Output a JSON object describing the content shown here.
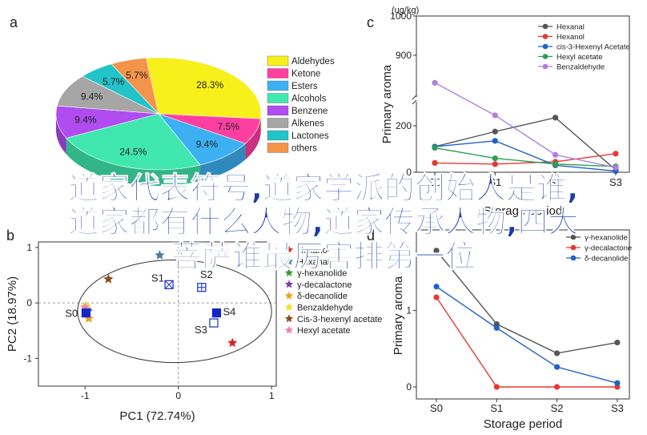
{
  "panel_labels": {
    "a": "a",
    "b": "b",
    "c": "c",
    "d": "d"
  },
  "overlay_title": [
    "道家代表符号,道家学派的创始人是谁,",
    "道家都有什么人物,道家传承人物,四大",
    "菩萨谁最厉害排第一位"
  ],
  "chart_data": [
    {
      "id": "a",
      "type": "pie",
      "categories": [
        "Aldehydes",
        "Ketone",
        "Esters",
        "Alcohols",
        "Benzene",
        "Alkenes",
        "Lactones",
        "others"
      ],
      "values": [
        28.3,
        7.5,
        9.4,
        24.5,
        9.4,
        9.4,
        5.7,
        5.7
      ],
      "labels": [
        "28.3%",
        "7.5%",
        "9.4%",
        "24.5%",
        "9.4%",
        "9.4%",
        "5.7%",
        "5.7%"
      ],
      "colors": [
        "#f7f01a",
        "#ff3fa0",
        "#3db0f2",
        "#40e8b0",
        "#b04cf0",
        "#a6a6a6",
        "#22c3c9",
        "#f4934a"
      ],
      "legend": "right"
    },
    {
      "id": "b",
      "type": "scatter",
      "xlabel": "PC1 (72.74%)",
      "ylabel": "PC2 (18.97%)",
      "xticks": [
        "-1",
        "0",
        "1"
      ],
      "yticks": [
        "1",
        "0",
        "-1"
      ],
      "xlim": [
        -1.5,
        1.05
      ],
      "ylim": [
        -1.5,
        1.1
      ],
      "loadings": [
        {
          "name": "Hexanol",
          "x": 0.58,
          "y": -0.72,
          "color": "#d62728"
        },
        {
          "name": "Hexanal",
          "x": -0.2,
          "y": 0.86,
          "color": "#4a7ba6"
        },
        {
          "name": "γ-hexanolide",
          "x": -0.98,
          "y": -0.12,
          "color": "#2ca02c"
        },
        {
          "name": "γ-decalactone",
          "x": -0.97,
          "y": -0.15,
          "color": "#7b3aa8"
        },
        {
          "name": "δ-decanolide",
          "x": -0.96,
          "y": -0.28,
          "color": "#f0a020"
        },
        {
          "name": "Benzaldehyde",
          "x": -0.99,
          "y": -0.05,
          "color": "#f7e020"
        },
        {
          "name": "Cis-3-hexenyl acetate",
          "x": -0.75,
          "y": 0.43,
          "color": "#8a4b1e"
        },
        {
          "name": "Hexyl acetate",
          "x": -1.0,
          "y": -0.08,
          "color": "#f080b8"
        }
      ],
      "samples": [
        {
          "name": "S0",
          "x": -0.99,
          "y": -0.18
        },
        {
          "name": "S1",
          "x": -0.1,
          "y": 0.33
        },
        {
          "name": "S2",
          "x": 0.25,
          "y": 0.28
        },
        {
          "name": "S3",
          "x": 0.38,
          "y": -0.36
        },
        {
          "name": "S4",
          "x": 0.41,
          "y": -0.18
        }
      ]
    },
    {
      "id": "c",
      "type": "line",
      "unit": "(ug/kg)",
      "ylabel": "Primary aroma",
      "xlabel": "Storage period",
      "categories": [
        "S0",
        "S1",
        "S2",
        "S3"
      ],
      "yticks": [
        "1000",
        "900",
        "200",
        "0"
      ],
      "axis_break": [
        300,
        800
      ],
      "series": [
        {
          "name": "Hexanal",
          "values": [
            110,
            175,
            235,
            10
          ],
          "color": "#555555"
        },
        {
          "name": "Hexanol",
          "values": [
            40,
            35,
            45,
            80
          ],
          "color": "#e53935"
        },
        {
          "name": "cis-3-Hexenyl Acetate",
          "values": [
            110,
            135,
            30,
            5
          ],
          "color": "#1e63c9"
        },
        {
          "name": "Hexyl acetate",
          "values": [
            105,
            60,
            35,
            25
          ],
          "color": "#2e9e4f"
        },
        {
          "name": "Benzaldehyde",
          "values": [
            830,
            245,
            75,
            20
          ],
          "color": "#b07ee0"
        }
      ]
    },
    {
      "id": "d",
      "type": "line",
      "ylabel": "Primary aroma",
      "xlabel": "Storage period",
      "categories": [
        "S0",
        "S1",
        "S2",
        "S3"
      ],
      "yticks": [
        "0",
        "1"
      ],
      "ylim": [
        0,
        2.05
      ],
      "series": [
        {
          "name": "γ-hexanolide",
          "values": [
            1.78,
            0.82,
            0.44,
            0.58
          ],
          "color": "#555555"
        },
        {
          "name": "γ-decalactone",
          "values": [
            1.17,
            0.0,
            0.0,
            0.0
          ],
          "color": "#e53935"
        },
        {
          "name": "δ-decanolide",
          "values": [
            1.31,
            0.77,
            0.26,
            0.05
          ],
          "color": "#1e63c9"
        }
      ]
    }
  ]
}
